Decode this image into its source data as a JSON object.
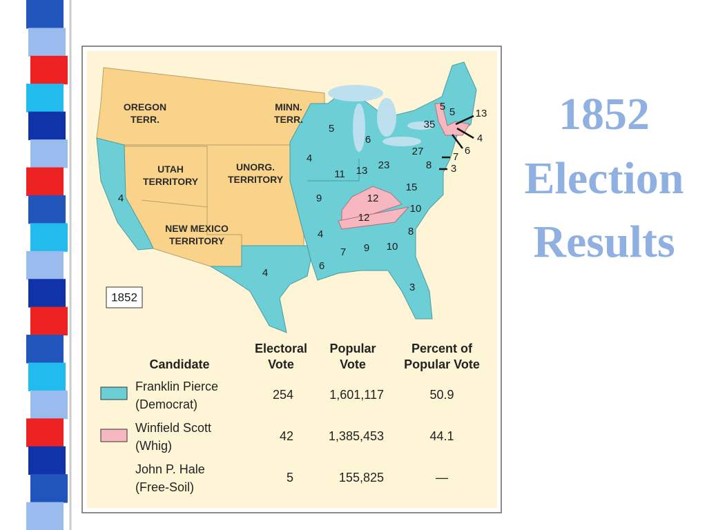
{
  "title": {
    "lines": [
      "1852",
      "Election",
      "Results"
    ]
  },
  "map": {
    "year_label": "1852",
    "territories": [
      [
        "OREGON",
        "TERR."
      ],
      [
        "MINN.",
        "TERR."
      ],
      [
        "UTAH",
        "TERRITORY"
      ],
      [
        "UNORG.",
        "TERRITORY"
      ],
      [
        "NEW MEXICO",
        "TERRITORY"
      ]
    ],
    "state_votes": [
      5,
      5,
      13,
      4,
      6,
      7,
      3,
      8,
      35,
      27,
      5,
      6,
      4,
      11,
      13,
      23,
      15,
      12,
      12,
      10,
      9,
      4,
      8,
      10,
      9,
      7,
      6,
      3,
      4,
      4
    ]
  },
  "table": {
    "headers": [
      [
        "Candidate"
      ],
      [
        "Electoral",
        "Vote"
      ],
      [
        "Popular",
        "Vote"
      ],
      [
        "Percent of",
        "Popular Vote"
      ]
    ],
    "rows": [
      {
        "candidate": [
          "Franklin Pierce",
          "(Democrat)"
        ],
        "electoral": 254,
        "popular": "1,601,117",
        "percent": "50.9"
      },
      {
        "candidate": [
          "Winfield Scott",
          "(Whig)"
        ],
        "electoral": 42,
        "popular": "1,385,453",
        "percent": "44.1"
      },
      {
        "candidate": [
          "John P. Hale",
          "(Free-Soil)"
        ],
        "electoral": 5,
        "popular": "155,825",
        "percent": "—"
      }
    ]
  }
}
